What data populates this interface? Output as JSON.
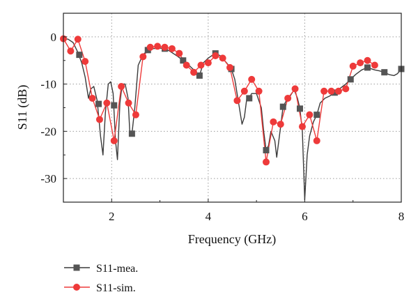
{
  "chart_data": {
    "type": "line",
    "xlabel": "Frequency (GHz)",
    "ylabel": "S11 (dB)",
    "xlim": [
      1,
      8
    ],
    "ylim": [
      -35,
      5
    ],
    "xticks": [
      2,
      4,
      6,
      8
    ],
    "yticks": [
      0,
      -10,
      -20,
      -30
    ],
    "grid": "dotted",
    "legend_position": "below",
    "series": [
      {
        "name": "S11-mea.",
        "color": "#3a3a3a",
        "marker": "square",
        "markers": [
          [
            1.33,
            -3.8
          ],
          [
            1.73,
            -14.2
          ],
          [
            2.05,
            -14.5
          ],
          [
            2.42,
            -20.5
          ],
          [
            2.75,
            -2.8
          ],
          [
            3.1,
            -2.5
          ],
          [
            3.48,
            -5
          ],
          [
            3.82,
            -8.2
          ],
          [
            4.15,
            -3.5
          ],
          [
            4.48,
            -6.8
          ],
          [
            4.85,
            -13
          ],
          [
            5.2,
            -24
          ],
          [
            5.55,
            -14.8
          ],
          [
            5.9,
            -15.2
          ],
          [
            6.25,
            -16.5
          ],
          [
            6.62,
            -11.8
          ],
          [
            6.95,
            -9
          ],
          [
            7.3,
            -6.5
          ],
          [
            7.65,
            -7.5
          ],
          [
            8.0,
            -6.8
          ]
        ],
        "points": [
          [
            1.0,
            -0.3
          ],
          [
            1.1,
            -0.5
          ],
          [
            1.2,
            -1.2
          ],
          [
            1.3,
            -3.3
          ],
          [
            1.38,
            -5.5
          ],
          [
            1.45,
            -8.5
          ],
          [
            1.52,
            -13
          ],
          [
            1.57,
            -11
          ],
          [
            1.63,
            -10.5
          ],
          [
            1.7,
            -13.5
          ],
          [
            1.77,
            -21
          ],
          [
            1.82,
            -25
          ],
          [
            1.87,
            -16
          ],
          [
            1.93,
            -10
          ],
          [
            1.98,
            -9.5
          ],
          [
            2.03,
            -12
          ],
          [
            2.08,
            -22
          ],
          [
            2.12,
            -26
          ],
          [
            2.17,
            -14
          ],
          [
            2.22,
            -10
          ],
          [
            2.28,
            -10
          ],
          [
            2.34,
            -13
          ],
          [
            2.38,
            -21
          ],
          [
            2.42,
            -20.5
          ],
          [
            2.48,
            -15
          ],
          [
            2.55,
            -6
          ],
          [
            2.65,
            -3.8
          ],
          [
            2.75,
            -2.8
          ],
          [
            2.85,
            -2.5
          ],
          [
            3.0,
            -2.4
          ],
          [
            3.1,
            -2.5
          ],
          [
            3.2,
            -3
          ],
          [
            3.35,
            -4
          ],
          [
            3.48,
            -5
          ],
          [
            3.6,
            -6
          ],
          [
            3.7,
            -7
          ],
          [
            3.76,
            -8
          ],
          [
            3.82,
            -8.2
          ],
          [
            3.9,
            -5.5
          ],
          [
            4.0,
            -4.5
          ],
          [
            4.1,
            -3.8
          ],
          [
            4.15,
            -3.5
          ],
          [
            4.25,
            -4
          ],
          [
            4.38,
            -5.5
          ],
          [
            4.48,
            -6.8
          ],
          [
            4.55,
            -9
          ],
          [
            4.63,
            -14
          ],
          [
            4.7,
            -18.5
          ],
          [
            4.75,
            -17
          ],
          [
            4.8,
            -13
          ],
          [
            4.85,
            -13
          ],
          [
            4.9,
            -12
          ],
          [
            5.0,
            -12
          ],
          [
            5.1,
            -15
          ],
          [
            5.15,
            -20
          ],
          [
            5.2,
            -24
          ],
          [
            5.25,
            -23
          ],
          [
            5.3,
            -20
          ],
          [
            5.38,
            -22
          ],
          [
            5.42,
            -25.5
          ],
          [
            5.5,
            -19
          ],
          [
            5.55,
            -14.8
          ],
          [
            5.62,
            -13.5
          ],
          [
            5.7,
            -12.5
          ],
          [
            5.78,
            -11.2
          ],
          [
            5.85,
            -13
          ],
          [
            5.9,
            -15.2
          ],
          [
            5.95,
            -20
          ],
          [
            6.0,
            -34.5
          ],
          [
            6.05,
            -25
          ],
          [
            6.1,
            -21
          ],
          [
            6.18,
            -18
          ],
          [
            6.25,
            -16.5
          ],
          [
            6.32,
            -14
          ],
          [
            6.42,
            -13
          ],
          [
            6.52,
            -12.5
          ],
          [
            6.62,
            -11.8
          ],
          [
            6.72,
            -11
          ],
          [
            6.85,
            -10
          ],
          [
            6.95,
            -9
          ],
          [
            7.05,
            -8
          ],
          [
            7.18,
            -7
          ],
          [
            7.3,
            -6.5
          ],
          [
            7.45,
            -7
          ],
          [
            7.55,
            -7.2
          ],
          [
            7.65,
            -7.5
          ],
          [
            7.75,
            -8
          ],
          [
            7.85,
            -8.2
          ],
          [
            7.92,
            -7.8
          ],
          [
            8.0,
            -6.8
          ]
        ]
      },
      {
        "name": "S11-sim.",
        "color": "#ee3a3a",
        "marker": "circle",
        "markers": [
          [
            1.0,
            -0.4
          ],
          [
            1.15,
            -3
          ],
          [
            1.3,
            -0.5
          ],
          [
            1.45,
            -5.2
          ],
          [
            1.6,
            -13
          ],
          [
            1.75,
            -17.5
          ],
          [
            1.9,
            -14
          ],
          [
            2.05,
            -22
          ],
          [
            2.2,
            -10.5
          ],
          [
            2.35,
            -14
          ],
          [
            2.5,
            -16.5
          ],
          [
            2.65,
            -4.2
          ],
          [
            2.8,
            -2.2
          ],
          [
            2.95,
            -2
          ],
          [
            3.1,
            -2.2
          ],
          [
            3.25,
            -2.5
          ],
          [
            3.4,
            -3.5
          ],
          [
            3.55,
            -6
          ],
          [
            3.7,
            -7.5
          ],
          [
            3.85,
            -6
          ],
          [
            4.0,
            -5.5
          ],
          [
            4.15,
            -4
          ],
          [
            4.3,
            -4.5
          ],
          [
            4.45,
            -6.5
          ],
          [
            4.6,
            -13.5
          ],
          [
            4.75,
            -11.5
          ],
          [
            4.9,
            -9
          ],
          [
            5.05,
            -11.5
          ],
          [
            5.2,
            -26.5
          ],
          [
            5.35,
            -18
          ],
          [
            5.5,
            -18.5
          ],
          [
            5.65,
            -13
          ],
          [
            5.8,
            -11
          ],
          [
            5.95,
            -19
          ],
          [
            6.1,
            -16.5
          ],
          [
            6.25,
            -22
          ],
          [
            6.4,
            -11.5
          ],
          [
            6.55,
            -11.5
          ],
          [
            6.7,
            -11.5
          ],
          [
            6.85,
            -11
          ],
          [
            7.0,
            -6.2
          ],
          [
            7.15,
            -5.5
          ],
          [
            7.3,
            -5
          ],
          [
            7.45,
            -6
          ]
        ]
      }
    ]
  }
}
